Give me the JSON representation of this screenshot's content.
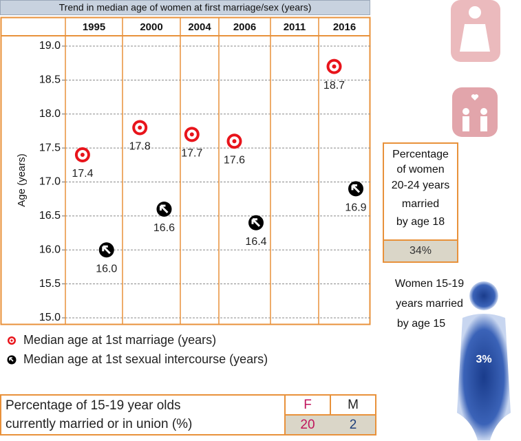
{
  "chart_data": {
    "type": "scatter",
    "title": "Trend in median age of women at first marriage/sex (years)",
    "y_label": "Age (years)",
    "categories": [
      "1995",
      "2000",
      "2004",
      "2006",
      "2011",
      "2016"
    ],
    "series": [
      {
        "name": "Median age at 1st marriage (years)",
        "color": "#e8141b",
        "values": [
          17.4,
          17.8,
          17.7,
          17.6,
          null,
          18.7
        ],
        "value_labels": [
          "17.4",
          "17.8",
          "17.7",
          "17.6",
          null,
          "18.7"
        ]
      },
      {
        "name": "Median age at 1st sexual intercourse (years)",
        "color": "#000000",
        "values": [
          16.0,
          16.6,
          null,
          16.4,
          null,
          16.9
        ],
        "value_labels": [
          "16.0",
          "16.6",
          null,
          "16.4",
          null,
          "16.9"
        ]
      }
    ],
    "ylim": [
      15,
      19
    ],
    "yticks": [
      {
        "value": 15,
        "label": "15.0"
      },
      {
        "value": 15.5,
        "label": "15.5"
      },
      {
        "value": 16,
        "label": "16.0"
      },
      {
        "value": 16.5,
        "label": "16.5"
      },
      {
        "value": 17,
        "label": "17.0"
      },
      {
        "value": 17.5,
        "label": "17.5"
      },
      {
        "value": 18,
        "label": "18.0"
      },
      {
        "value": 18.5,
        "label": "18.5"
      },
      {
        "value": 19,
        "label": "19.0"
      }
    ],
    "grid": true
  },
  "married_by_18": {
    "lines": [
      "Percentage",
      "of women",
      "20-24 years",
      "married",
      "by age 18"
    ],
    "value": "34%"
  },
  "married_by_15": {
    "lines": [
      "Women 15-19",
      "years married",
      "by age 15"
    ],
    "value": "3%"
  },
  "union_table": {
    "lines": [
      "Percentage of 15-19 year olds",
      "currently married or in union (%)"
    ],
    "headers": [
      "F",
      "M"
    ],
    "values": [
      20,
      2
    ]
  }
}
